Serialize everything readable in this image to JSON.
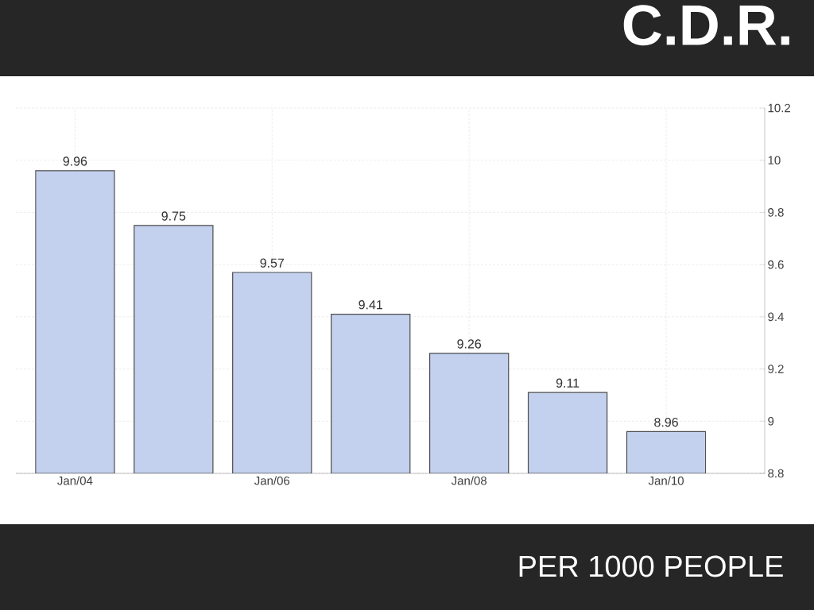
{
  "chart_data": {
    "type": "bar",
    "title": "C.D.R.",
    "annotations": [
      "PER 1000 PEOPLE"
    ],
    "categories": [
      "Jan/04",
      null,
      "Jan/06",
      null,
      "Jan/08",
      null,
      "Jan/10"
    ],
    "values": [
      9.96,
      9.75,
      9.57,
      9.41,
      9.26,
      9.11,
      8.96
    ],
    "color": "#c3d1ee",
    "ylim": [
      8.8,
      10.2
    ],
    "yticks": [
      8.8,
      9,
      9.2,
      9.4,
      9.6,
      9.8,
      10,
      10.2
    ],
    "grid": true,
    "data_labels": true
  }
}
